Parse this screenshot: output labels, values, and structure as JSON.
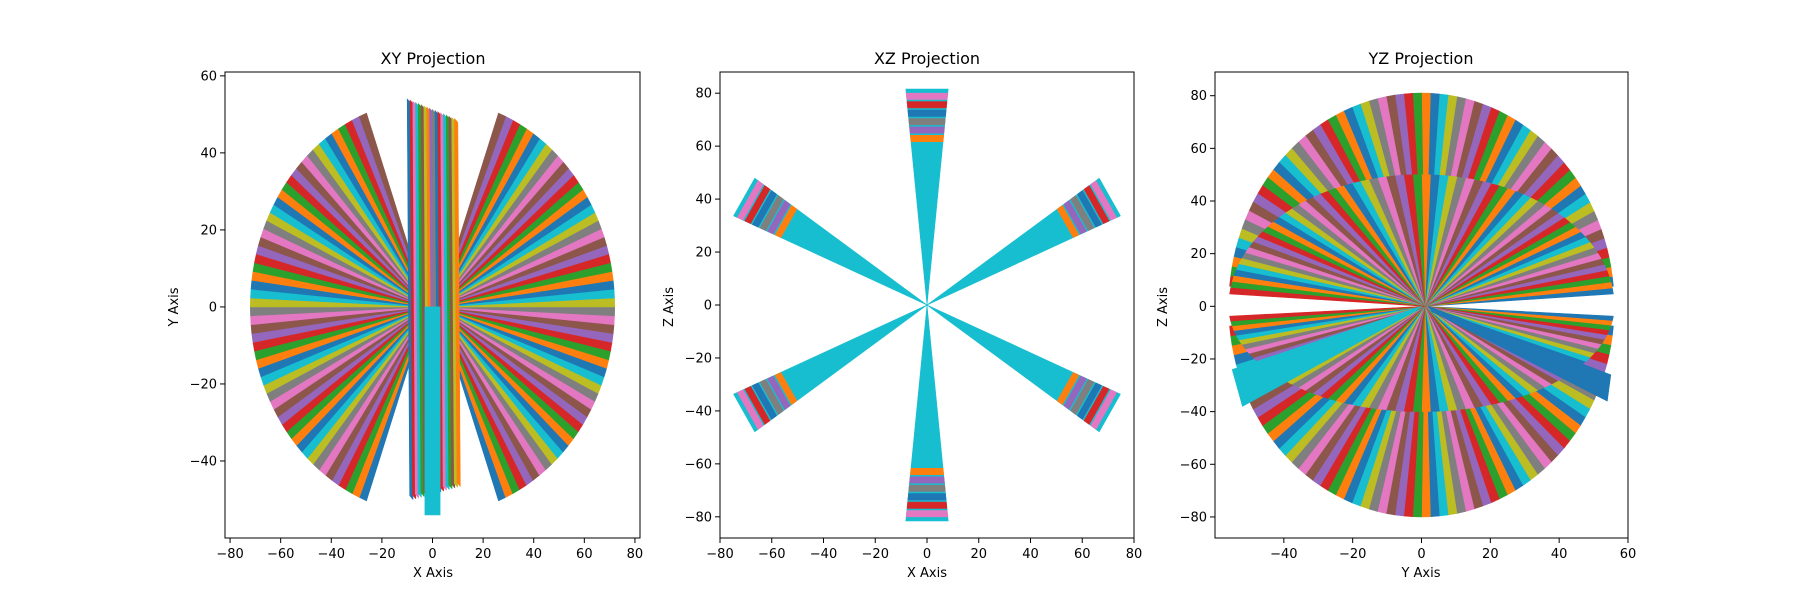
{
  "palette": [
    "#1f77b4",
    "#ff7f0e",
    "#2ca02c",
    "#d62728",
    "#9467bd",
    "#8c564b",
    "#e377c2",
    "#7f7f7f",
    "#bcbd22",
    "#17becf"
  ],
  "chart_data": [
    {
      "type": "scatter",
      "title": "XY Projection",
      "xlabel": "X Axis",
      "ylabel": "Y Axis",
      "xlim": [
        -82,
        82
      ],
      "ylim": [
        -60,
        61
      ],
      "xticks": [
        -80,
        -60,
        -40,
        -20,
        0,
        20,
        40,
        60,
        80
      ],
      "yticks": [
        -40,
        -20,
        0,
        20,
        40,
        60
      ],
      "xtick_labels": [
        "−80",
        "−60",
        "−40",
        "−20",
        "0",
        "20",
        "40",
        "60",
        "80"
      ],
      "ytick_labels": [
        "−40",
        "−20",
        "0",
        "20",
        "40",
        "60"
      ],
      "projection": "xy",
      "grid": false
    },
    {
      "type": "scatter",
      "title": "XZ Projection",
      "xlabel": "X Axis",
      "ylabel": "Z Axis",
      "xlim": [
        -80,
        80
      ],
      "ylim": [
        -88,
        88
      ],
      "xticks": [
        -80,
        -60,
        -40,
        -20,
        0,
        20,
        40,
        60,
        80
      ],
      "yticks": [
        -80,
        -60,
        -40,
        -20,
        0,
        20,
        40,
        60,
        80
      ],
      "xtick_labels": [
        "−80",
        "−60",
        "−40",
        "−20",
        "0",
        "20",
        "40",
        "60",
        "80"
      ],
      "ytick_labels": [
        "−80",
        "−60",
        "−40",
        "−20",
        "0",
        "20",
        "40",
        "60",
        "80"
      ],
      "projection": "xz",
      "grid": false
    },
    {
      "type": "scatter",
      "title": "YZ Projection",
      "xlabel": "Y Axis",
      "ylabel": "Z Axis",
      "xlim": [
        -60,
        60
      ],
      "ylim": [
        -88,
        89
      ],
      "xticks": [
        -40,
        -20,
        0,
        20,
        40,
        60
      ],
      "yticks": [
        -80,
        -60,
        -40,
        -20,
        0,
        20,
        40,
        60,
        80
      ],
      "xtick_labels": [
        "−40",
        "−20",
        "0",
        "20",
        "40",
        "60"
      ],
      "ytick_labels": [
        "−80",
        "−60",
        "−40",
        "−20",
        "0",
        "20",
        "40",
        "60",
        "80"
      ],
      "projection": "yz",
      "grid": false
    }
  ]
}
